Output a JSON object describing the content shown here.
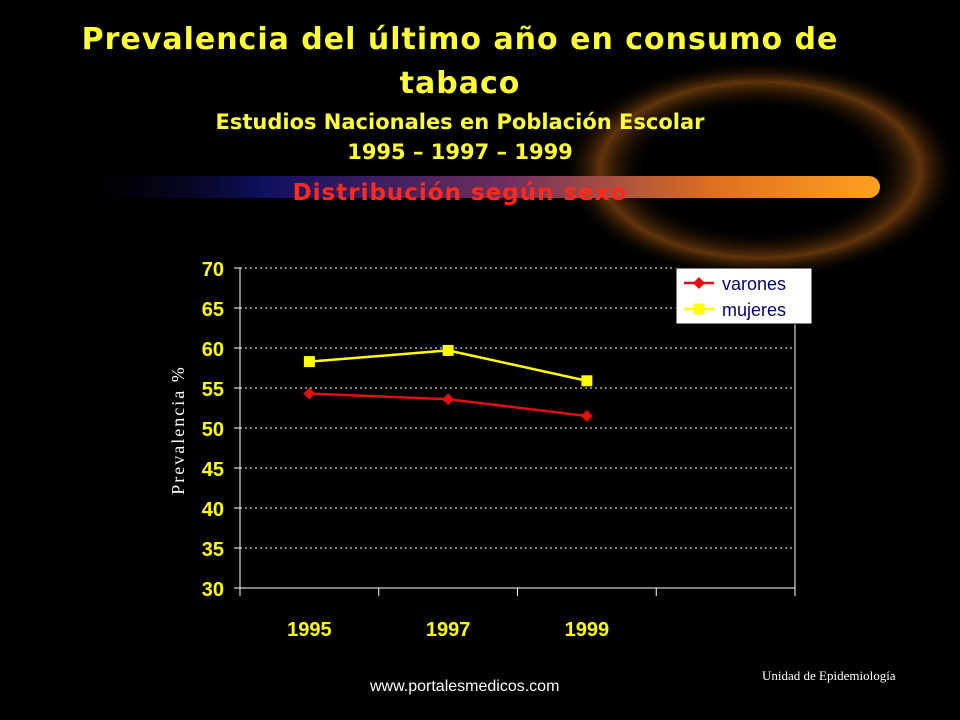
{
  "slide": {
    "title_line1": "Prevalencia del último año en consumo de",
    "title_line2": "tabaco",
    "subtitle_line1": "Estudios Nacionales en Población Escolar",
    "subtitle_line2": "1995 – 1997 – 1999",
    "subtitle_line3": "Distribución según sexo",
    "footer_url": "www.portalesmedicos.com",
    "footer_unit": "Unidad de Epidemiología"
  },
  "colors": {
    "background": "#000000",
    "title": "#ffff33",
    "highlight": "#ff2a1a",
    "varones": "#e01010",
    "mujeres": "#ffff00",
    "axis_text": "#ffff00"
  },
  "chart_data": {
    "type": "line",
    "title": "",
    "xlabel": "",
    "ylabel": "Prevalencia %",
    "categories": [
      "1995",
      "1997",
      "1999"
    ],
    "ylim": [
      30,
      70
    ],
    "yticks": [
      30,
      35,
      40,
      45,
      50,
      55,
      60,
      65,
      70
    ],
    "grid": true,
    "legend_position": "top-right",
    "series": [
      {
        "name": "varones",
        "values": [
          54.3,
          53.6,
          51.5
        ],
        "color": "#e01010",
        "marker": "diamond"
      },
      {
        "name": "mujeres",
        "values": [
          58.3,
          59.7,
          55.9
        ],
        "color": "#ffff00",
        "marker": "square"
      }
    ]
  }
}
